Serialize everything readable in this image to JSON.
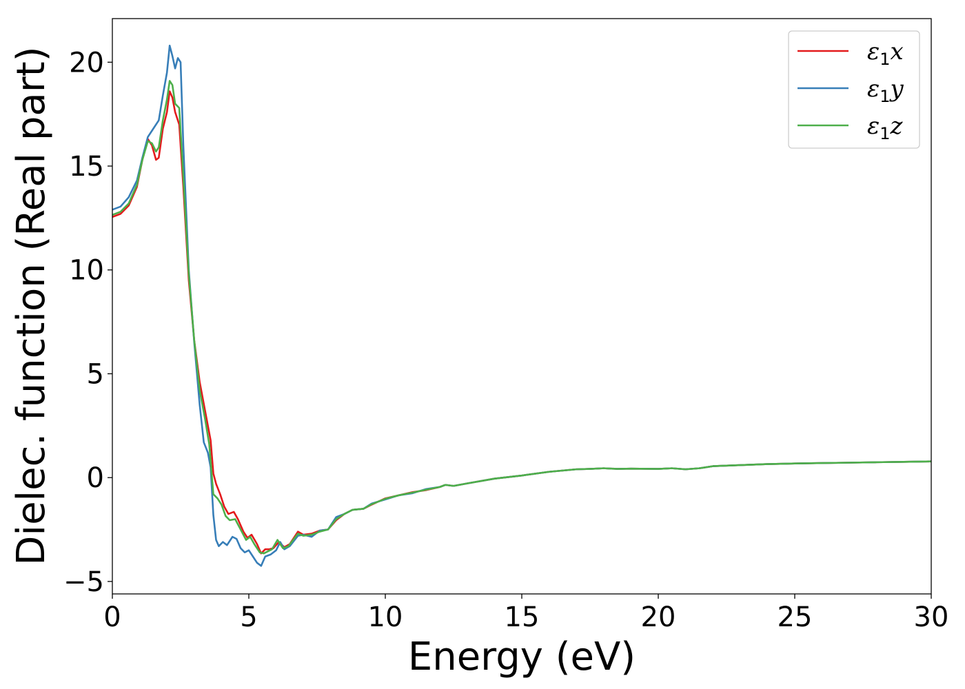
{
  "chart_data": {
    "type": "line",
    "xlabel": "Energy (eV)",
    "ylabel": "Dielec. function (Real part)",
    "xlim": [
      0,
      30
    ],
    "ylim": [
      -5.6,
      22.1
    ],
    "x_ticks": [
      0,
      5,
      10,
      15,
      20,
      25,
      30
    ],
    "y_ticks": [
      -5,
      0,
      5,
      10,
      15,
      20
    ],
    "x_tick_labels": [
      "0",
      "5",
      "10",
      "15",
      "20",
      "25",
      "30"
    ],
    "y_tick_labels": [
      "−5",
      "0",
      "5",
      "10",
      "15",
      "20"
    ],
    "grid": false,
    "legend_position": "top-right",
    "series": [
      {
        "name": "ε1x",
        "legend_base": "ε",
        "legend_sub": "1",
        "legend_var": "x",
        "color": "#e31a1c",
        "points": [
          [
            0,
            12.55
          ],
          [
            0.3,
            12.7
          ],
          [
            0.6,
            13.1
          ],
          [
            0.9,
            14.0
          ],
          [
            1.1,
            15.3
          ],
          [
            1.3,
            16.3
          ],
          [
            1.45,
            16.0
          ],
          [
            1.6,
            15.3
          ],
          [
            1.7,
            15.4
          ],
          [
            1.85,
            16.8
          ],
          [
            2.0,
            17.6
          ],
          [
            2.1,
            18.6
          ],
          [
            2.2,
            18.3
          ],
          [
            2.3,
            17.6
          ],
          [
            2.45,
            17.0
          ],
          [
            2.6,
            14.0
          ],
          [
            2.8,
            9.5
          ],
          [
            3.0,
            6.6
          ],
          [
            3.2,
            4.6
          ],
          [
            3.4,
            3.2
          ],
          [
            3.6,
            1.8
          ],
          [
            3.7,
            0.2
          ],
          [
            3.8,
            -0.3
          ],
          [
            3.95,
            -0.8
          ],
          [
            4.1,
            -1.4
          ],
          [
            4.25,
            -1.75
          ],
          [
            4.45,
            -1.65
          ],
          [
            4.6,
            -2.0
          ],
          [
            4.8,
            -2.6
          ],
          [
            4.95,
            -2.9
          ],
          [
            5.1,
            -2.75
          ],
          [
            5.3,
            -3.2
          ],
          [
            5.45,
            -3.65
          ],
          [
            5.6,
            -3.45
          ],
          [
            5.75,
            -3.45
          ],
          [
            5.9,
            -3.4
          ],
          [
            6.1,
            -3.1
          ],
          [
            6.3,
            -3.35
          ],
          [
            6.5,
            -3.2
          ],
          [
            6.8,
            -2.6
          ],
          [
            7.0,
            -2.75
          ],
          [
            7.3,
            -2.7
          ],
          [
            7.6,
            -2.55
          ],
          [
            7.9,
            -2.5
          ],
          [
            8.2,
            -2.05
          ],
          [
            8.5,
            -1.75
          ],
          [
            8.8,
            -1.55
          ],
          [
            9.2,
            -1.5
          ],
          [
            9.5,
            -1.3
          ],
          [
            10,
            -1.0
          ],
          [
            10.5,
            -0.85
          ],
          [
            11,
            -0.7
          ],
          [
            11.5,
            -0.6
          ],
          [
            12,
            -0.45
          ],
          [
            12.2,
            -0.35
          ],
          [
            12.5,
            -0.4
          ],
          [
            13,
            -0.28
          ],
          [
            14,
            -0.05
          ],
          [
            15,
            0.1
          ],
          [
            16,
            0.28
          ],
          [
            17,
            0.4
          ],
          [
            17.5,
            0.42
          ],
          [
            18,
            0.45
          ],
          [
            18.5,
            0.42
          ],
          [
            19,
            0.43
          ],
          [
            20,
            0.42
          ],
          [
            20.5,
            0.45
          ],
          [
            21,
            0.4
          ],
          [
            21.5,
            0.45
          ],
          [
            22,
            0.55
          ],
          [
            23,
            0.6
          ],
          [
            24,
            0.65
          ],
          [
            25,
            0.68
          ],
          [
            26,
            0.7
          ],
          [
            27,
            0.72
          ],
          [
            28,
            0.74
          ],
          [
            29,
            0.76
          ],
          [
            30,
            0.78
          ]
        ]
      },
      {
        "name": "ε1y",
        "legend_base": "ε",
        "legend_sub": "1",
        "legend_var": "y",
        "color": "#377eb8",
        "points": [
          [
            0,
            12.9
          ],
          [
            0.3,
            13.05
          ],
          [
            0.6,
            13.5
          ],
          [
            0.9,
            14.3
          ],
          [
            1.1,
            15.4
          ],
          [
            1.3,
            16.4
          ],
          [
            1.5,
            16.8
          ],
          [
            1.7,
            17.2
          ],
          [
            1.85,
            18.4
          ],
          [
            2.0,
            19.5
          ],
          [
            2.1,
            20.8
          ],
          [
            2.2,
            20.3
          ],
          [
            2.3,
            19.7
          ],
          [
            2.4,
            20.2
          ],
          [
            2.5,
            20.0
          ],
          [
            2.6,
            16.0
          ],
          [
            2.8,
            10.0
          ],
          [
            3.0,
            6.5
          ],
          [
            3.2,
            3.5
          ],
          [
            3.35,
            1.7
          ],
          [
            3.5,
            1.2
          ],
          [
            3.6,
            0.5
          ],
          [
            3.7,
            -1.8
          ],
          [
            3.8,
            -3.0
          ],
          [
            3.9,
            -3.3
          ],
          [
            4.05,
            -3.1
          ],
          [
            4.2,
            -3.25
          ],
          [
            4.4,
            -2.85
          ],
          [
            4.55,
            -2.95
          ],
          [
            4.7,
            -3.4
          ],
          [
            4.85,
            -3.6
          ],
          [
            5.0,
            -3.5
          ],
          [
            5.15,
            -3.8
          ],
          [
            5.3,
            -4.1
          ],
          [
            5.45,
            -4.25
          ],
          [
            5.6,
            -3.8
          ],
          [
            5.8,
            -3.7
          ],
          [
            6.0,
            -3.5
          ],
          [
            6.15,
            -3.1
          ],
          [
            6.3,
            -3.45
          ],
          [
            6.5,
            -3.3
          ],
          [
            6.8,
            -2.8
          ],
          [
            7.0,
            -2.75
          ],
          [
            7.3,
            -2.85
          ],
          [
            7.6,
            -2.55
          ],
          [
            7.9,
            -2.5
          ],
          [
            8.2,
            -1.9
          ],
          [
            8.5,
            -1.75
          ],
          [
            8.8,
            -1.55
          ],
          [
            9.2,
            -1.5
          ],
          [
            9.5,
            -1.25
          ],
          [
            10,
            -1.05
          ],
          [
            10.5,
            -0.85
          ],
          [
            11,
            -0.75
          ],
          [
            11.5,
            -0.55
          ],
          [
            12,
            -0.45
          ],
          [
            12.2,
            -0.35
          ],
          [
            12.5,
            -0.4
          ],
          [
            13,
            -0.28
          ],
          [
            14,
            -0.05
          ],
          [
            15,
            0.1
          ],
          [
            16,
            0.28
          ],
          [
            17,
            0.4
          ],
          [
            17.5,
            0.42
          ],
          [
            18,
            0.45
          ],
          [
            18.5,
            0.42
          ],
          [
            19,
            0.43
          ],
          [
            20,
            0.42
          ],
          [
            20.5,
            0.45
          ],
          [
            21,
            0.4
          ],
          [
            21.5,
            0.45
          ],
          [
            22,
            0.55
          ],
          [
            23,
            0.6
          ],
          [
            24,
            0.65
          ],
          [
            25,
            0.68
          ],
          [
            26,
            0.7
          ],
          [
            27,
            0.72
          ],
          [
            28,
            0.74
          ],
          [
            29,
            0.76
          ],
          [
            30,
            0.78
          ]
        ]
      },
      {
        "name": "ε1z",
        "legend_base": "ε",
        "legend_sub": "1",
        "legend_var": "z",
        "color": "#4daf4a",
        "points": [
          [
            0,
            12.65
          ],
          [
            0.3,
            12.8
          ],
          [
            0.6,
            13.2
          ],
          [
            0.9,
            14.1
          ],
          [
            1.1,
            15.3
          ],
          [
            1.3,
            16.2
          ],
          [
            1.45,
            16.1
          ],
          [
            1.6,
            15.7
          ],
          [
            1.7,
            15.9
          ],
          [
            1.85,
            17.2
          ],
          [
            2.0,
            18.2
          ],
          [
            2.1,
            19.1
          ],
          [
            2.2,
            18.9
          ],
          [
            2.3,
            18.0
          ],
          [
            2.45,
            17.8
          ],
          [
            2.6,
            14.5
          ],
          [
            2.8,
            9.8
          ],
          [
            3.0,
            6.6
          ],
          [
            3.2,
            4.2
          ],
          [
            3.4,
            2.8
          ],
          [
            3.55,
            1.6
          ],
          [
            3.7,
            -0.8
          ],
          [
            3.85,
            -1.0
          ],
          [
            4.0,
            -1.3
          ],
          [
            4.15,
            -1.85
          ],
          [
            4.3,
            -2.05
          ],
          [
            4.5,
            -2.0
          ],
          [
            4.7,
            -2.5
          ],
          [
            4.9,
            -3.0
          ],
          [
            5.05,
            -2.85
          ],
          [
            5.2,
            -3.2
          ],
          [
            5.4,
            -3.6
          ],
          [
            5.55,
            -3.65
          ],
          [
            5.7,
            -3.55
          ],
          [
            5.85,
            -3.45
          ],
          [
            6.05,
            -3.0
          ],
          [
            6.25,
            -3.4
          ],
          [
            6.45,
            -3.3
          ],
          [
            6.8,
            -2.7
          ],
          [
            7.0,
            -2.8
          ],
          [
            7.3,
            -2.75
          ],
          [
            7.6,
            -2.6
          ],
          [
            7.9,
            -2.5
          ],
          [
            8.2,
            -2.0
          ],
          [
            8.5,
            -1.75
          ],
          [
            8.8,
            -1.55
          ],
          [
            9.2,
            -1.5
          ],
          [
            9.5,
            -1.28
          ],
          [
            10,
            -1.02
          ],
          [
            10.5,
            -0.85
          ],
          [
            11,
            -0.72
          ],
          [
            11.5,
            -0.58
          ],
          [
            12,
            -0.45
          ],
          [
            12.2,
            -0.35
          ],
          [
            12.5,
            -0.4
          ],
          [
            13,
            -0.28
          ],
          [
            14,
            -0.05
          ],
          [
            15,
            0.1
          ],
          [
            16,
            0.28
          ],
          [
            17,
            0.4
          ],
          [
            17.5,
            0.42
          ],
          [
            18,
            0.45
          ],
          [
            18.5,
            0.42
          ],
          [
            19,
            0.43
          ],
          [
            20,
            0.42
          ],
          [
            20.5,
            0.45
          ],
          [
            21,
            0.4
          ],
          [
            21.5,
            0.45
          ],
          [
            22,
            0.55
          ],
          [
            23,
            0.6
          ],
          [
            24,
            0.65
          ],
          [
            25,
            0.68
          ],
          [
            26,
            0.7
          ],
          [
            27,
            0.72
          ],
          [
            28,
            0.74
          ],
          [
            29,
            0.76
          ],
          [
            30,
            0.78
          ]
        ]
      }
    ]
  }
}
